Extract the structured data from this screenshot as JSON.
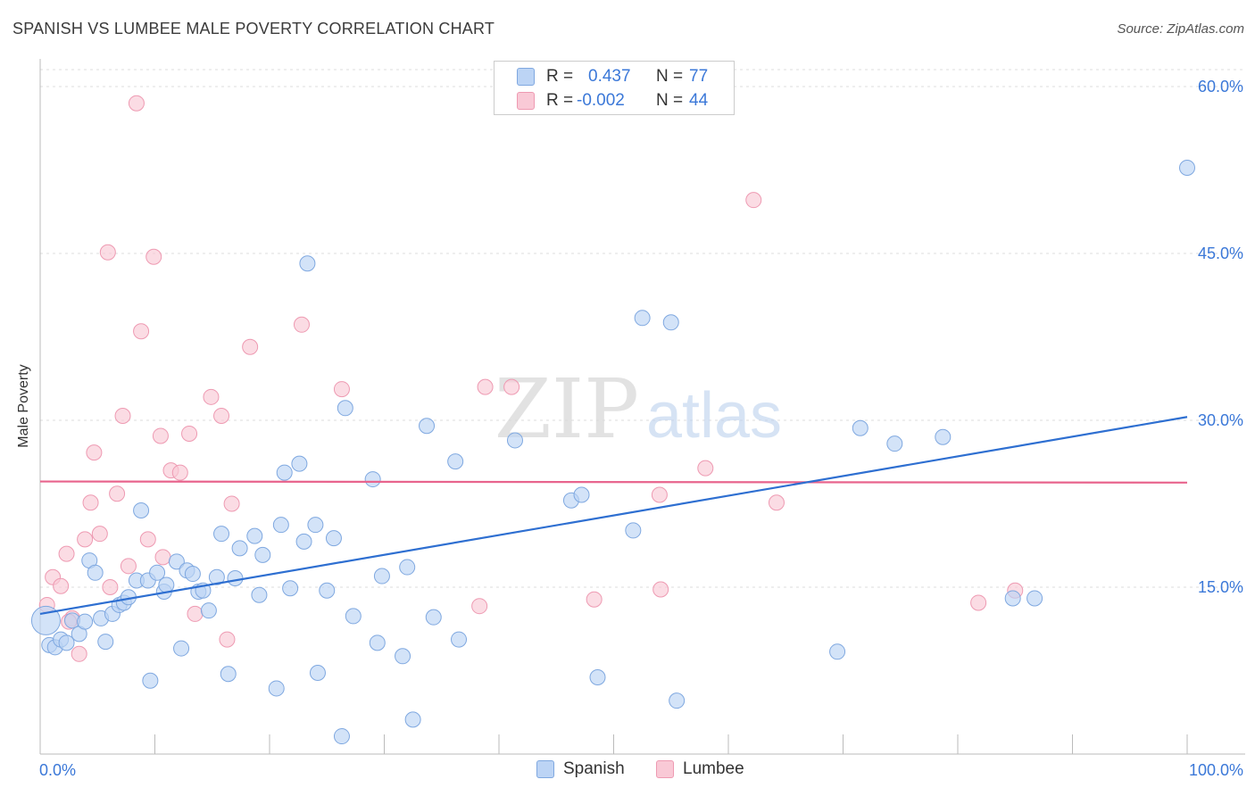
{
  "title": "SPANISH VS LUMBEE MALE POVERTY CORRELATION CHART",
  "source": "Source: ZipAtlas.com",
  "watermark": {
    "zip": "ZIP",
    "atlas": "atlas"
  },
  "colors": {
    "spanish_fill": "#bcd4f5",
    "spanish_stroke": "#7fa8e0",
    "spanish_line": "#2e6fd1",
    "lumbee_fill": "#f9c9d6",
    "lumbee_stroke": "#ee9ab2",
    "lumbee_line": "#e8648d",
    "tick_label": "#3b78d8",
    "grid": "#dddddd"
  },
  "legend_top": {
    "rows": [
      {
        "series": "Spanish",
        "r_label": "R =",
        "r_value": "0.437",
        "n_label": "N =",
        "n_value": "77"
      },
      {
        "series": "Lumbee",
        "r_label": "R =",
        "r_value": "-0.002",
        "n_label": "N =",
        "n_value": "44"
      }
    ]
  },
  "legend_bottom": {
    "items": [
      "Spanish",
      "Lumbee"
    ]
  },
  "chart_data": {
    "type": "scatter",
    "title": "SPANISH VS LUMBEE MALE POVERTY CORRELATION CHART",
    "xlabel": "",
    "ylabel": "Male Poverty",
    "xlim": [
      0,
      100
    ],
    "ylim": [
      0,
      62
    ],
    "x_tick_labels": [
      "0.0%",
      "100.0%"
    ],
    "y_ticks": [
      15,
      30,
      45,
      60
    ],
    "y_tick_labels": [
      "15.0%",
      "30.0%",
      "45.0%",
      "60.0%"
    ],
    "grid": true,
    "legend_position": "top-center",
    "series": [
      {
        "name": "Spanish",
        "r": 0.437,
        "n": 77,
        "trend": {
          "x": [
            0,
            100
          ],
          "y": [
            12.6,
            30.3
          ]
        },
        "points": [
          {
            "x": 0.5,
            "y": 12.0,
            "big": true
          },
          {
            "x": 0.8,
            "y": 9.8
          },
          {
            "x": 1.3,
            "y": 9.6
          },
          {
            "x": 1.8,
            "y": 10.3
          },
          {
            "x": 2.3,
            "y": 10.0
          },
          {
            "x": 2.8,
            "y": 12.0
          },
          {
            "x": 3.4,
            "y": 10.8
          },
          {
            "x": 3.9,
            "y": 11.9
          },
          {
            "x": 4.3,
            "y": 17.4
          },
          {
            "x": 4.8,
            "y": 16.3
          },
          {
            "x": 5.3,
            "y": 12.2
          },
          {
            "x": 5.7,
            "y": 10.1
          },
          {
            "x": 6.3,
            "y": 12.6
          },
          {
            "x": 6.9,
            "y": 13.4
          },
          {
            "x": 7.3,
            "y": 13.6
          },
          {
            "x": 7.7,
            "y": 14.1
          },
          {
            "x": 8.4,
            "y": 15.6
          },
          {
            "x": 8.8,
            "y": 21.9
          },
          {
            "x": 9.4,
            "y": 15.6
          },
          {
            "x": 9.6,
            "y": 6.6
          },
          {
            "x": 10.2,
            "y": 16.3
          },
          {
            "x": 10.8,
            "y": 14.6
          },
          {
            "x": 11.0,
            "y": 15.2
          },
          {
            "x": 11.9,
            "y": 17.3
          },
          {
            "x": 12.3,
            "y": 9.5
          },
          {
            "x": 12.8,
            "y": 16.5
          },
          {
            "x": 13.3,
            "y": 16.2
          },
          {
            "x": 13.8,
            "y": 14.6
          },
          {
            "x": 14.2,
            "y": 14.7
          },
          {
            "x": 14.7,
            "y": 12.9
          },
          {
            "x": 15.4,
            "y": 15.9
          },
          {
            "x": 15.8,
            "y": 19.8
          },
          {
            "x": 16.4,
            "y": 7.2
          },
          {
            "x": 17.0,
            "y": 15.8
          },
          {
            "x": 17.4,
            "y": 18.5
          },
          {
            "x": 18.7,
            "y": 19.6
          },
          {
            "x": 19.1,
            "y": 14.3
          },
          {
            "x": 19.4,
            "y": 17.9
          },
          {
            "x": 20.6,
            "y": 5.9
          },
          {
            "x": 21.0,
            "y": 20.6
          },
          {
            "x": 21.3,
            "y": 25.3
          },
          {
            "x": 21.8,
            "y": 14.9
          },
          {
            "x": 22.6,
            "y": 26.1
          },
          {
            "x": 23.0,
            "y": 19.1
          },
          {
            "x": 23.3,
            "y": 44.1
          },
          {
            "x": 24.0,
            "y": 20.6
          },
          {
            "x": 24.2,
            "y": 7.3
          },
          {
            "x": 25.0,
            "y": 14.7
          },
          {
            "x": 25.6,
            "y": 19.4
          },
          {
            "x": 26.3,
            "y": 1.6
          },
          {
            "x": 26.6,
            "y": 31.1
          },
          {
            "x": 27.3,
            "y": 12.4
          },
          {
            "x": 29.0,
            "y": 24.7
          },
          {
            "x": 29.4,
            "y": 10.0
          },
          {
            "x": 29.8,
            "y": 16.0
          },
          {
            "x": 31.6,
            "y": 8.8
          },
          {
            "x": 32.0,
            "y": 16.8
          },
          {
            "x": 32.5,
            "y": 3.1
          },
          {
            "x": 33.7,
            "y": 29.5
          },
          {
            "x": 34.3,
            "y": 12.3
          },
          {
            "x": 36.2,
            "y": 26.3
          },
          {
            "x": 36.5,
            "y": 10.3
          },
          {
            "x": 41.4,
            "y": 28.2
          },
          {
            "x": 46.3,
            "y": 22.8
          },
          {
            "x": 47.2,
            "y": 23.3
          },
          {
            "x": 48.6,
            "y": 6.9
          },
          {
            "x": 51.7,
            "y": 20.1
          },
          {
            "x": 52.5,
            "y": 39.2
          },
          {
            "x": 55.0,
            "y": 38.8
          },
          {
            "x": 55.5,
            "y": 4.8
          },
          {
            "x": 69.5,
            "y": 9.2
          },
          {
            "x": 71.5,
            "y": 29.3
          },
          {
            "x": 74.5,
            "y": 27.9
          },
          {
            "x": 78.7,
            "y": 28.5
          },
          {
            "x": 84.8,
            "y": 14.0
          },
          {
            "x": 86.7,
            "y": 14.0
          },
          {
            "x": 100.0,
            "y": 52.7
          }
        ]
      },
      {
        "name": "Lumbee",
        "r": -0.002,
        "n": 44,
        "trend": {
          "x": [
            0,
            100
          ],
          "y": [
            24.5,
            24.4
          ]
        },
        "points": [
          {
            "x": 0.6,
            "y": 13.4
          },
          {
            "x": 1.1,
            "y": 15.9
          },
          {
            "x": 1.8,
            "y": 15.1
          },
          {
            "x": 2.3,
            "y": 18.0
          },
          {
            "x": 2.8,
            "y": 12.2
          },
          {
            "x": 3.4,
            "y": 9.0
          },
          {
            "x": 3.9,
            "y": 19.3
          },
          {
            "x": 4.4,
            "y": 22.6
          },
          {
            "x": 4.7,
            "y": 27.1
          },
          {
            "x": 5.2,
            "y": 19.8
          },
          {
            "x": 5.9,
            "y": 45.1
          },
          {
            "x": 6.1,
            "y": 15.0
          },
          {
            "x": 6.7,
            "y": 23.4
          },
          {
            "x": 7.2,
            "y": 30.4
          },
          {
            "x": 7.7,
            "y": 16.9
          },
          {
            "x": 8.4,
            "y": 58.5
          },
          {
            "x": 8.8,
            "y": 38.0
          },
          {
            "x": 9.4,
            "y": 19.3
          },
          {
            "x": 9.9,
            "y": 44.7
          },
          {
            "x": 10.5,
            "y": 28.6
          },
          {
            "x": 10.7,
            "y": 17.7
          },
          {
            "x": 11.4,
            "y": 25.5
          },
          {
            "x": 12.2,
            "y": 25.3
          },
          {
            "x": 13.0,
            "y": 28.8
          },
          {
            "x": 13.5,
            "y": 12.6
          },
          {
            "x": 14.9,
            "y": 32.1
          },
          {
            "x": 15.8,
            "y": 30.4
          },
          {
            "x": 16.3,
            "y": 10.3
          },
          {
            "x": 16.7,
            "y": 22.5
          },
          {
            "x": 18.3,
            "y": 36.6
          },
          {
            "x": 22.8,
            "y": 38.6
          },
          {
            "x": 26.3,
            "y": 32.8
          },
          {
            "x": 38.3,
            "y": 13.3
          },
          {
            "x": 38.8,
            "y": 33.0
          },
          {
            "x": 41.1,
            "y": 33.0
          },
          {
            "x": 48.3,
            "y": 13.9
          },
          {
            "x": 54.0,
            "y": 23.3
          },
          {
            "x": 54.1,
            "y": 14.8
          },
          {
            "x": 58.0,
            "y": 25.7
          },
          {
            "x": 62.2,
            "y": 49.8
          },
          {
            "x": 64.2,
            "y": 22.6
          },
          {
            "x": 81.8,
            "y": 13.6
          },
          {
            "x": 85.0,
            "y": 14.7
          },
          {
            "x": 2.5,
            "y": 11.9
          }
        ]
      }
    ]
  }
}
